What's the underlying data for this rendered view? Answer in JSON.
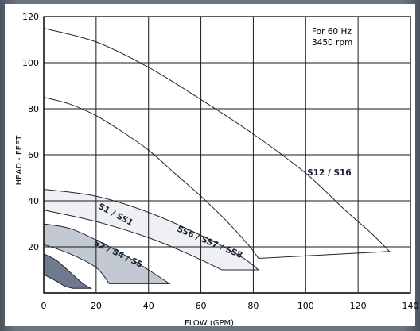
{
  "chart_data": {
    "type": "area",
    "title": "",
    "xlabel": "FLOW (GPM)",
    "ylabel": "HEAD - FEET",
    "xlim": [
      0,
      140
    ],
    "ylim": [
      0,
      120
    ],
    "xticks": [
      "0",
      "20",
      "40",
      "60",
      "80",
      "100",
      "120",
      "140"
    ],
    "yticks": [
      "20",
      "40",
      "60",
      "80",
      "100",
      "120"
    ],
    "grid": true,
    "annotation": "For 60 Hz\n3450 rpm",
    "series": [
      {
        "name": "S1 / SS1",
        "fill": "#6f7a8c",
        "upper": [
          [
            0,
            17
          ],
          [
            5,
            14
          ],
          [
            10,
            9
          ],
          [
            15,
            4
          ],
          [
            18,
            2
          ]
        ],
        "lower": [
          [
            0,
            8
          ],
          [
            5,
            5
          ],
          [
            8,
            3
          ],
          [
            11,
            2
          ]
        ]
      },
      {
        "name": "S2 / S4 / S5",
        "fill": "#c3c9d3",
        "upper": [
          [
            0,
            30
          ],
          [
            10,
            28
          ],
          [
            20,
            23
          ],
          [
            30,
            17
          ],
          [
            40,
            10
          ],
          [
            48,
            4
          ]
        ],
        "lower": [
          [
            0,
            21
          ],
          [
            10,
            17
          ],
          [
            20,
            11
          ],
          [
            25,
            4
          ]
        ]
      },
      {
        "name": "SS6 / SS7 / SS8",
        "fill": "#eef0f4",
        "upper": [
          [
            0,
            45
          ],
          [
            20,
            42
          ],
          [
            40,
            35
          ],
          [
            60,
            25
          ],
          [
            75,
            16
          ],
          [
            82,
            10
          ]
        ],
        "lower": [
          [
            0,
            36
          ],
          [
            20,
            31
          ],
          [
            40,
            24
          ],
          [
            55,
            17
          ],
          [
            68,
            10
          ]
        ]
      },
      {
        "name": "S12 / S16",
        "fill": "#ffffff",
        "upper": [
          [
            0,
            115
          ],
          [
            20,
            109
          ],
          [
            40,
            98
          ],
          [
            60,
            84
          ],
          [
            80,
            69
          ],
          [
            100,
            52
          ],
          [
            115,
            36
          ],
          [
            125,
            26
          ],
          [
            132,
            18
          ]
        ],
        "lower": [
          [
            0,
            85
          ],
          [
            10,
            82
          ],
          [
            20,
            77
          ],
          [
            30,
            70
          ],
          [
            40,
            62
          ],
          [
            50,
            52
          ],
          [
            60,
            42
          ],
          [
            70,
            31
          ],
          [
            78,
            21
          ],
          [
            82,
            15
          ]
        ]
      }
    ],
    "colors": {
      "grid": "#1a1a1a",
      "frame": "#5a6470"
    }
  }
}
